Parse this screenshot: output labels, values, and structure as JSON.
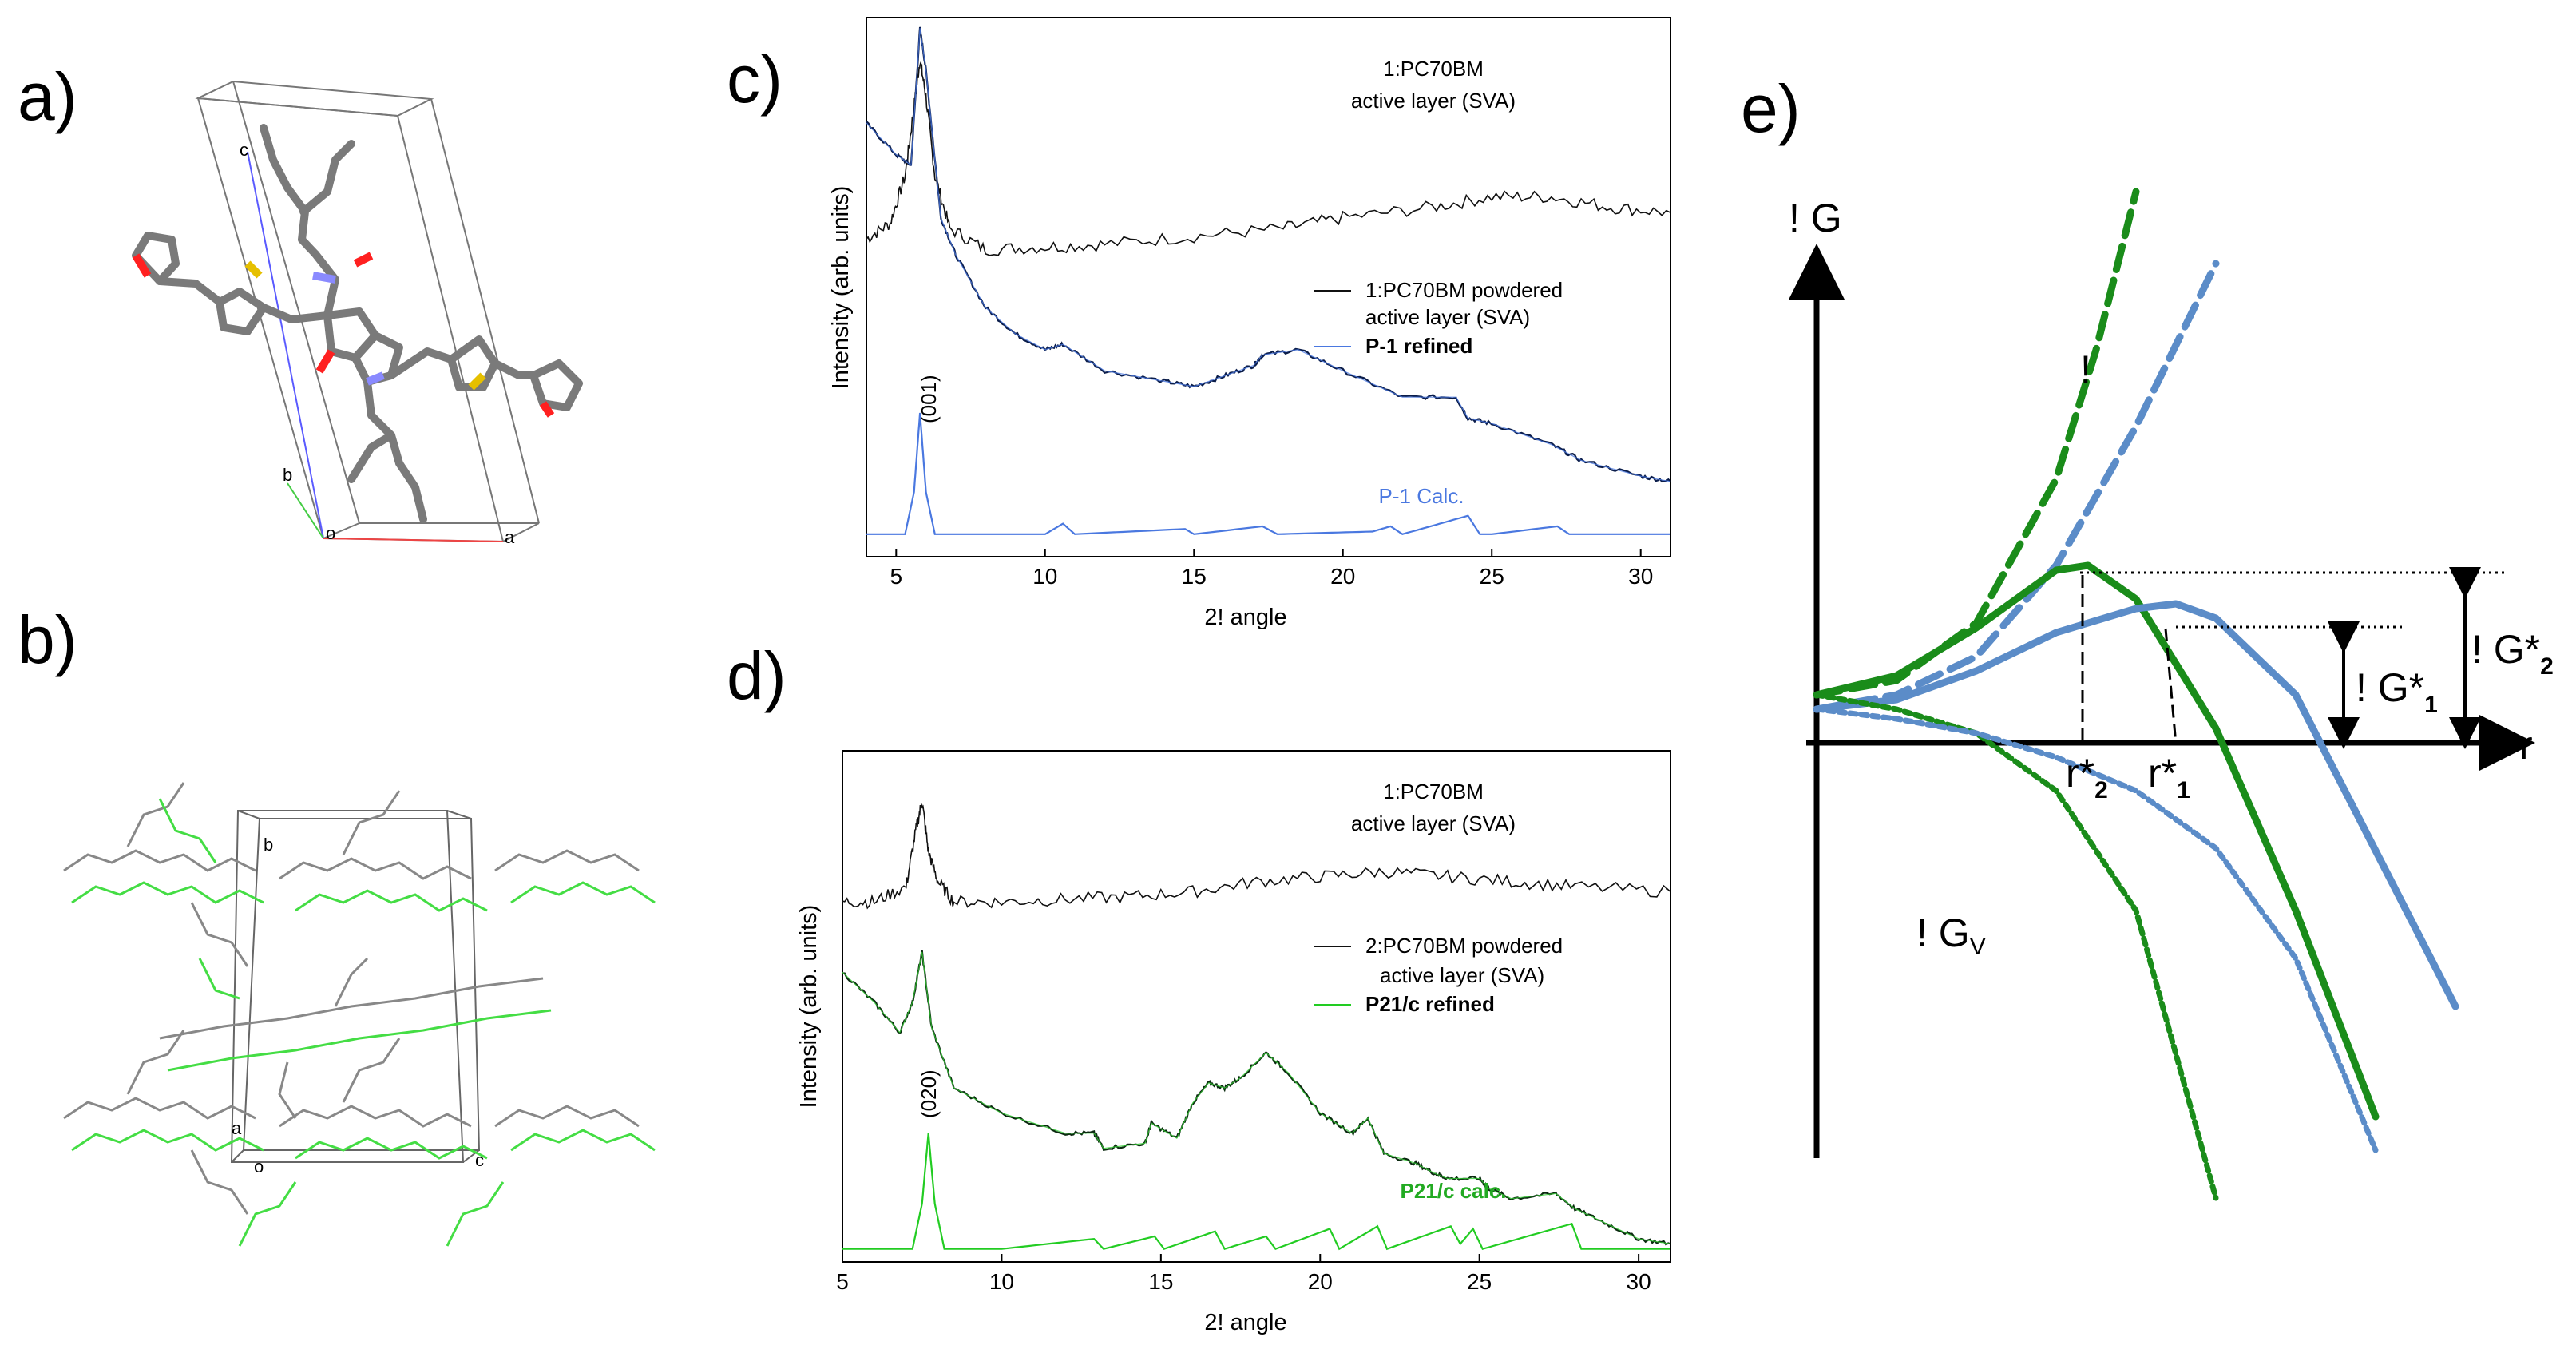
{
  "panels": {
    "a": "a)",
    "b": "b)",
    "c": "c)",
    "d": "d)",
    "e": "e)"
  },
  "crystal_a": {
    "atoms": {
      "c": "c",
      "b": "b",
      "o": "o",
      "a": "a"
    }
  },
  "crystal_b": {
    "atoms": {
      "b": "b",
      "a": "a",
      "o": "o",
      "c": "c"
    }
  },
  "colors": {
    "black": "#111111",
    "blue": "#4a78e0",
    "green": "#22cc22",
    "dark_green": "#1a8c1a",
    "steel_blue": "#5b8cc8",
    "grey": "#7a7a7a",
    "navy": "#0b1d4a"
  },
  "chart_data": [
    {
      "panel": "c",
      "type": "line",
      "xlabel": "2! angle",
      "ylabel": "Intensity (arb. units)",
      "xlim": [
        4,
        31
      ],
      "xticks": [
        5,
        10,
        15,
        20,
        25,
        30
      ],
      "annotations": {
        "top_line1": "1:PC70BM",
        "top_line2": "active layer (SVA)",
        "legend1_a": "1:PC70BM powdered",
        "legend1_b": "active layer (SVA)",
        "legend2": "P-1 refined",
        "calc_label": "P-1 Calc.",
        "peak_label": "(001)"
      },
      "series": [
        {
          "name": "1:PC70BM active layer (SVA)",
          "x": [
            4,
            4.8,
            5.3,
            5.6,
            5.8,
            6.0,
            6.3,
            6.8,
            8,
            10,
            12,
            15,
            18,
            20,
            23,
            25,
            27,
            29,
            31
          ],
          "y": [
            0.58,
            0.61,
            0.7,
            0.83,
            0.92,
            0.85,
            0.7,
            0.6,
            0.56,
            0.565,
            0.57,
            0.585,
            0.6,
            0.62,
            0.64,
            0.66,
            0.66,
            0.64,
            0.63
          ]
        },
        {
          "name": "1:PC70BM powdered active layer (SVA)",
          "x": [
            4,
            5,
            5.5,
            5.8,
            6.0,
            6.5,
            7,
            8,
            9,
            10,
            10.6,
            12,
            14,
            15,
            16,
            17,
            17.3,
            18.5,
            20,
            22,
            23.8,
            24.2,
            25,
            27,
            28,
            30,
            31
          ],
          "y": [
            0.8,
            0.74,
            0.72,
            0.98,
            0.9,
            0.62,
            0.55,
            0.45,
            0.4,
            0.37,
            0.38,
            0.33,
            0.31,
            0.3,
            0.32,
            0.34,
            0.36,
            0.37,
            0.33,
            0.28,
            0.28,
            0.24,
            0.23,
            0.19,
            0.16,
            0.13,
            0.12
          ]
        },
        {
          "name": "P-1 Calc.",
          "x": [
            4,
            5.3,
            5.6,
            5.8,
            6.0,
            6.3,
            7,
            10,
            10.6,
            11,
            14.7,
            15,
            17.3,
            17.8,
            21,
            21.6,
            22,
            24.2,
            24.6,
            25,
            27.2,
            27.6,
            29,
            31
          ],
          "y": [
            0.02,
            0.02,
            0.1,
            0.25,
            0.1,
            0.02,
            0.02,
            0.02,
            0.04,
            0.02,
            0.03,
            0.02,
            0.035,
            0.02,
            0.025,
            0.035,
            0.02,
            0.055,
            0.02,
            0.02,
            0.035,
            0.02,
            0.02,
            0.02
          ]
        }
      ]
    },
    {
      "panel": "d",
      "type": "line",
      "xlabel": "2! angle",
      "ylabel": "Intensity (arb. units)",
      "xlim": [
        5,
        31
      ],
      "xticks": [
        5,
        10,
        15,
        20,
        25,
        30
      ],
      "annotations": {
        "top_line1": "1:PC70BM",
        "top_line2": "active layer (SVA)",
        "legend1_a": "2:PC70BM powdered",
        "legend1_b": "active layer (SVA)",
        "legend2": "P21/c refined",
        "calc_label": "P21/c calc.",
        "peak_label": "(020)"
      },
      "series": [
        {
          "name": "1:PC70BM active layer (SVA)",
          "x": [
            5,
            6,
            7,
            7.3,
            7.5,
            7.7,
            8,
            8.5,
            10,
            12,
            14,
            16,
            18,
            20,
            22,
            24,
            26,
            28,
            31
          ],
          "y": [
            0.7,
            0.7,
            0.73,
            0.84,
            0.9,
            0.8,
            0.74,
            0.7,
            0.7,
            0.705,
            0.71,
            0.72,
            0.74,
            0.75,
            0.76,
            0.75,
            0.74,
            0.73,
            0.72
          ]
        },
        {
          "name": "2:PC70BM powdered active layer (SVA)",
          "x": [
            5,
            6,
            6.8,
            7.2,
            7.5,
            7.8,
            8.5,
            10,
            12,
            12.9,
            13.2,
            14.5,
            14.7,
            15.5,
            16,
            16.5,
            17,
            17.5,
            18.3,
            19,
            20,
            21,
            21.5,
            22,
            23,
            23.6,
            24,
            25,
            25.3,
            26,
            27.4,
            28,
            29,
            30,
            31
          ],
          "y": [
            0.56,
            0.5,
            0.44,
            0.5,
            0.6,
            0.45,
            0.33,
            0.28,
            0.24,
            0.24,
            0.21,
            0.22,
            0.26,
            0.23,
            0.3,
            0.34,
            0.33,
            0.35,
            0.4,
            0.36,
            0.28,
            0.24,
            0.27,
            0.2,
            0.18,
            0.16,
            0.15,
            0.15,
            0.13,
            0.11,
            0.12,
            0.09,
            0.06,
            0.03,
            0.02
          ]
        },
        {
          "name": "P21/c calc.",
          "x": [
            5,
            7.2,
            7.5,
            7.7,
            7.9,
            8.2,
            10,
            12.9,
            13.2,
            14.8,
            15.1,
            16.7,
            17,
            18.3,
            18.6,
            20.3,
            20.6,
            21.8,
            22.1,
            24.1,
            24.4,
            24.8,
            25.1,
            27.9,
            28.2,
            31
          ],
          "y": [
            0.01,
            0.01,
            0.1,
            0.24,
            0.1,
            0.01,
            0.01,
            0.03,
            0.01,
            0.035,
            0.01,
            0.045,
            0.01,
            0.035,
            0.01,
            0.05,
            0.01,
            0.055,
            0.01,
            0.055,
            0.02,
            0.05,
            0.01,
            0.06,
            0.01,
            0.01
          ]
        }
      ]
    },
    {
      "panel": "e",
      "type": "line",
      "xlabel": "r",
      "ylabel": "! G",
      "labels": {
        "dg_v": "! G",
        "dg_v_sub": "V",
        "exclaim": "!",
        "dg1": "! G*",
        "dg1_sub": "1",
        "dg2": "! G*",
        "dg2_sub": "2",
        "r1": "r*",
        "r1_sub": "1",
        "r2": "r*",
        "r2_sub": "2"
      },
      "series": [
        {
          "name": "surface term (green, dashed)",
          "x": [
            0,
            0.1,
            0.2,
            0.3,
            0.35,
            0.4
          ],
          "y": [
            0.1,
            0.13,
            0.25,
            0.55,
            0.82,
            1.15
          ]
        },
        {
          "name": "surface term (blue, dashed)",
          "x": [
            0,
            0.1,
            0.2,
            0.3,
            0.4,
            0.5
          ],
          "y": [
            0.07,
            0.1,
            0.18,
            0.37,
            0.66,
            1.0
          ]
        },
        {
          "name": "total (green, solid)",
          "x": [
            0,
            0.1,
            0.2,
            0.3,
            0.34,
            0.4,
            0.5,
            0.6,
            0.7
          ],
          "y": [
            0.1,
            0.14,
            0.24,
            0.36,
            0.37,
            0.3,
            0.03,
            -0.35,
            -0.78
          ]
        },
        {
          "name": "total (blue, solid)",
          "x": [
            0,
            0.1,
            0.2,
            0.3,
            0.4,
            0.45,
            0.5,
            0.6,
            0.8
          ],
          "y": [
            0.07,
            0.09,
            0.15,
            0.23,
            0.28,
            0.29,
            0.26,
            0.1,
            -0.55
          ]
        },
        {
          "name": "volume term (green, dotted)",
          "x": [
            0,
            0.1,
            0.2,
            0.3,
            0.4,
            0.5
          ],
          "y": [
            0.1,
            0.07,
            0.02,
            -0.1,
            -0.35,
            -0.95
          ]
        },
        {
          "name": "volume term (blue, dotted)",
          "x": [
            0,
            0.1,
            0.2,
            0.3,
            0.4,
            0.5,
            0.6,
            0.7
          ],
          "y": [
            0.07,
            0.05,
            0.02,
            -0.03,
            -0.1,
            -0.22,
            -0.45,
            -0.85
          ]
        }
      ]
    }
  ]
}
